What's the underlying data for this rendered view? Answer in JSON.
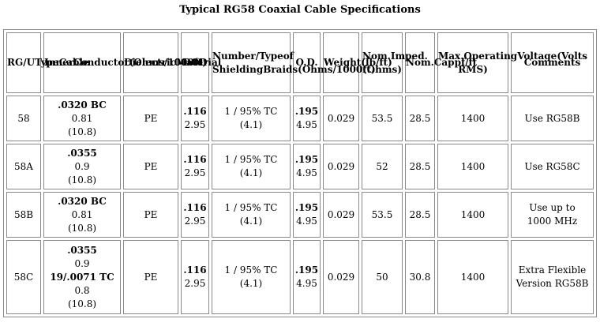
{
  "title": "Typical RG58 Coaxial Cable Specifications",
  "headers": [
    [
      "RG/U",
      "Type",
      "Cable"
    ],
    [
      "Inner",
      "Conductor",
      "(Ohms/1000ft)"
    ],
    [
      "Dielectric",
      "Material"
    ],
    [
      "DOD"
    ],
    [
      "Number/Type",
      "of Shielding",
      "Braids",
      "(Ohms/1000ft)"
    ],
    [
      "O.D."
    ],
    [
      "Weight",
      "(lb/ft)"
    ],
    [
      "Nom.",
      "Imped.",
      "(Ohms)"
    ],
    [
      "Nom.",
      "Cap",
      "pf/ft"
    ],
    [
      "Max.",
      "Operating",
      "Voltage",
      "(Volts RMS)"
    ],
    [
      "Comments"
    ]
  ],
  "rows": [
    {
      "type": "58",
      "inner": [
        {
          "t": ".0320 BC",
          "b": true
        },
        {
          "t": "0.81",
          "b": false
        },
        {
          "t": "(10.8)",
          "b": false
        }
      ],
      "dielectric": "PE",
      "dod": {
        "in": ".116",
        "mm": "2.95"
      },
      "shield": [
        "1 / 95% TC",
        "(4.1)"
      ],
      "od": {
        "in": ".195",
        "mm": "4.95"
      },
      "weight": "0.029",
      "imped": "53.5",
      "cap": "28.5",
      "voltage": "1400",
      "comments": [
        "Use RG58B"
      ]
    },
    {
      "type": "58A",
      "inner": [
        {
          "t": ".0355",
          "b": true
        },
        {
          "t": "0.9",
          "b": false
        },
        {
          "t": "(10.8)",
          "b": false
        }
      ],
      "dielectric": "PE",
      "dod": {
        "in": ".116",
        "mm": "2.95"
      },
      "shield": [
        "1 / 95% TC",
        "(4.1)"
      ],
      "od": {
        "in": ".195",
        "mm": "4.95"
      },
      "weight": "0.029",
      "imped": "52",
      "cap": "28.5",
      "voltage": "1400",
      "comments": [
        "Use RG58C"
      ]
    },
    {
      "type": "58B",
      "inner": [
        {
          "t": ".0320 BC",
          "b": true
        },
        {
          "t": "0.81",
          "b": false
        },
        {
          "t": "(10.8)",
          "b": false
        }
      ],
      "dielectric": "PE",
      "dod": {
        "in": ".116",
        "mm": "2.95"
      },
      "shield": [
        "1 / 95% TC",
        "(4.1)"
      ],
      "od": {
        "in": ".195",
        "mm": "4.95"
      },
      "weight": "0.029",
      "imped": "53.5",
      "cap": "28.5",
      "voltage": "1400",
      "comments": [
        "Use up to",
        "1000 MHz"
      ]
    },
    {
      "type": "58C",
      "inner": [
        {
          "t": ".0355",
          "b": true
        },
        {
          "t": "0.9",
          "b": false
        },
        {
          "t": "19/.0071 TC",
          "b": true
        },
        {
          "t": "0.8",
          "b": false
        },
        {
          "t": "(10.8)",
          "b": false
        }
      ],
      "dielectric": "PE",
      "dod": {
        "in": ".116",
        "mm": "2.95"
      },
      "shield": [
        "1 / 95% TC",
        "(4.1)"
      ],
      "od": {
        "in": ".195",
        "mm": "4.95"
      },
      "weight": "0.029",
      "imped": "50",
      "cap": "30.8",
      "voltage": "1400",
      "comments": [
        "Extra Flexible",
        "Version RG58B"
      ]
    }
  ]
}
